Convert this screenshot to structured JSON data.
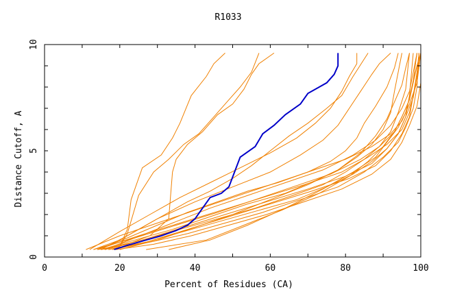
{
  "chart_data": {
    "type": "line",
    "title": "R1033",
    "xlabel": "Percent of Residues (CA)",
    "ylabel": "Distance Cutoff, A",
    "xlim": [
      0,
      100
    ],
    "ylim": [
      0,
      10
    ],
    "x_ticks": [
      "0",
      "20",
      "40",
      "60",
      "80",
      "100"
    ],
    "y_ticks": [
      "0",
      "5",
      "10"
    ],
    "grid": false,
    "colors": {
      "highlight": "#0000c8",
      "others": "#f08000",
      "axis": "#000000"
    },
    "highlight_series": {
      "x": [
        18.5,
        22,
        27,
        31,
        35,
        38,
        40,
        42,
        44,
        47,
        49,
        52,
        56,
        58,
        61,
        64,
        68,
        70,
        75,
        77,
        78,
        78
      ],
      "y": [
        0.35,
        0.55,
        0.8,
        1.0,
        1.25,
        1.5,
        1.8,
        2.3,
        2.8,
        3.0,
        3.3,
        4.7,
        5.2,
        5.8,
        6.2,
        6.7,
        7.2,
        7.7,
        8.2,
        8.6,
        9.0,
        9.6
      ]
    },
    "series": [
      {
        "x": [
          14,
          20,
          22,
          23,
          26,
          31,
          34,
          36,
          39,
          43,
          45,
          48
        ],
        "y": [
          0.35,
          0.5,
          1.3,
          2.7,
          4.2,
          4.8,
          5.6,
          6.3,
          7.6,
          8.5,
          9.1,
          9.6
        ]
      },
      {
        "x": [
          15,
          20,
          22,
          25,
          29,
          33,
          37,
          41,
          45,
          49,
          52,
          55,
          57
        ],
        "y": [
          0.35,
          0.5,
          1.1,
          2.9,
          4.0,
          4.6,
          5.3,
          5.8,
          6.6,
          7.4,
          8.0,
          8.7,
          9.6
        ]
      },
      {
        "x": [
          16,
          22,
          28,
          33,
          34,
          35,
          38,
          42,
          46,
          50,
          53,
          55,
          57,
          61
        ],
        "y": [
          0.35,
          0.6,
          1.0,
          1.8,
          4.0,
          4.6,
          5.3,
          5.9,
          6.7,
          7.2,
          7.9,
          8.6,
          9.1,
          9.6
        ]
      },
      {
        "x": [
          13,
          20,
          26,
          32,
          38,
          44,
          50,
          55,
          60,
          65,
          70,
          75,
          79,
          82,
          86
        ],
        "y": [
          0.35,
          0.8,
          1.4,
          2.0,
          2.6,
          3.1,
          3.7,
          4.3,
          5.0,
          5.7,
          6.3,
          7.0,
          7.6,
          8.5,
          9.6
        ]
      },
      {
        "x": [
          14,
          22,
          30,
          38,
          46,
          54,
          62,
          70,
          76,
          80,
          83,
          85,
          88,
          91,
          93,
          94
        ],
        "y": [
          0.35,
          0.9,
          1.5,
          2.1,
          2.6,
          3.1,
          3.5,
          4.0,
          4.5,
          5.0,
          5.6,
          6.3,
          7.1,
          8.0,
          8.9,
          9.6
        ]
      },
      {
        "x": [
          15,
          24,
          34,
          44,
          54,
          64,
          72,
          78,
          83,
          87,
          90,
          92,
          93,
          95
        ],
        "y": [
          0.35,
          0.8,
          1.3,
          1.9,
          2.5,
          3.0,
          3.6,
          4.1,
          4.7,
          5.3,
          6.0,
          6.8,
          7.8,
          9.6
        ]
      },
      {
        "x": [
          16,
          26,
          36,
          46,
          56,
          66,
          74,
          80,
          85,
          89,
          92,
          94,
          96,
          97
        ],
        "y": [
          0.35,
          0.8,
          1.3,
          1.8,
          2.3,
          2.9,
          3.4,
          4.0,
          4.6,
          5.2,
          5.9,
          6.8,
          7.9,
          9.6
        ]
      },
      {
        "x": [
          17,
          27,
          37,
          47,
          57,
          67,
          75,
          82,
          87,
          91,
          94,
          96,
          97,
          98
        ],
        "y": [
          0.35,
          0.7,
          1.2,
          1.7,
          2.2,
          2.7,
          3.3,
          3.9,
          4.5,
          5.1,
          5.8,
          6.6,
          7.6,
          9.6
        ]
      },
      {
        "x": [
          13,
          24,
          35,
          46,
          56,
          66,
          76,
          84,
          89,
          93,
          95,
          97,
          98,
          99
        ],
        "y": [
          0.35,
          0.9,
          1.5,
          2.1,
          2.7,
          3.3,
          3.9,
          4.6,
          5.2,
          5.9,
          6.6,
          7.4,
          8.3,
          9.6
        ]
      },
      {
        "x": [
          18,
          28,
          38,
          48,
          58,
          68,
          78,
          85,
          90,
          94,
          96,
          98,
          99,
          99.5
        ],
        "y": [
          0.35,
          0.7,
          1.1,
          1.6,
          2.1,
          2.7,
          3.3,
          4.0,
          4.7,
          5.4,
          6.1,
          7.0,
          8.0,
          9.6
        ]
      },
      {
        "x": [
          14,
          25,
          36,
          47,
          58,
          69,
          79,
          86,
          91,
          95,
          97,
          98,
          99,
          100
        ],
        "y": [
          0.35,
          1.0,
          1.6,
          2.2,
          2.8,
          3.4,
          4.0,
          4.7,
          5.3,
          6.0,
          6.8,
          7.6,
          8.5,
          9.6
        ]
      },
      {
        "x": [
          11,
          20,
          30,
          40,
          50,
          60,
          70,
          80,
          87,
          92,
          95,
          97,
          99,
          100
        ],
        "y": [
          0.35,
          1.0,
          1.6,
          2.2,
          2.8,
          3.4,
          4.0,
          4.6,
          5.2,
          5.8,
          6.4,
          7.2,
          8.2,
          9.6
        ]
      },
      {
        "x": [
          19,
          29,
          39,
          49,
          59,
          69,
          79,
          87,
          92,
          95,
          97,
          99,
          100,
          100
        ],
        "y": [
          0.35,
          0.6,
          1.0,
          1.5,
          2.0,
          2.6,
          3.2,
          3.9,
          4.6,
          5.4,
          6.2,
          7.1,
          8.2,
          9.6
        ]
      },
      {
        "x": [
          15,
          26,
          37,
          48,
          59,
          70,
          80,
          87,
          91,
          94,
          96,
          98,
          99,
          100
        ],
        "y": [
          0.35,
          0.8,
          1.4,
          2.0,
          2.6,
          3.2,
          3.8,
          4.4,
          5.1,
          5.8,
          6.6,
          7.5,
          8.5,
          9.6
        ]
      },
      {
        "x": [
          17,
          27,
          38,
          49,
          60,
          71,
          81,
          88,
          92,
          95,
          97,
          98,
          99,
          99.5
        ],
        "y": [
          0.35,
          0.7,
          1.3,
          1.9,
          2.5,
          3.1,
          3.7,
          4.3,
          5.0,
          5.8,
          6.6,
          7.6,
          8.7,
          9.6
        ]
      },
      {
        "x": [
          27,
          43,
          53,
          63,
          73,
          81,
          86,
          90,
          93,
          95,
          97,
          98,
          99,
          100
        ],
        "y": [
          0.35,
          0.8,
          1.5,
          2.2,
          3.0,
          3.8,
          4.5,
          5.2,
          5.9,
          6.6,
          7.4,
          8.2,
          9.0,
          9.6
        ]
      },
      {
        "x": [
          33,
          44,
          54,
          64,
          74,
          82,
          88,
          91,
          94,
          96,
          97,
          98,
          99,
          100
        ],
        "y": [
          0.35,
          0.8,
          1.5,
          2.3,
          3.2,
          4.0,
          4.7,
          5.4,
          6.1,
          6.8,
          7.5,
          8.3,
          9.0,
          9.6
        ]
      },
      {
        "x": [
          16,
          24,
          34,
          44,
          54,
          64,
          74,
          82,
          88,
          92,
          95,
          97,
          98,
          99
        ],
        "y": [
          0.35,
          0.9,
          1.6,
          2.3,
          2.9,
          3.5,
          4.1,
          4.8,
          5.5,
          6.2,
          7.0,
          7.8,
          8.7,
          9.6
        ]
      },
      {
        "x": [
          20,
          30,
          40,
          50,
          60,
          70,
          78,
          84,
          88,
          91,
          93,
          95,
          96,
          97
        ],
        "y": [
          0.35,
          0.8,
          1.4,
          2.0,
          2.7,
          3.4,
          4.1,
          4.9,
          5.7,
          6.5,
          7.3,
          8.1,
          8.9,
          9.6
        ]
      },
      {
        "x": [
          15,
          22,
          30,
          40,
          50,
          60,
          68,
          74,
          78,
          81,
          84,
          87,
          89,
          92
        ],
        "y": [
          0.35,
          1.0,
          1.8,
          2.6,
          3.3,
          4.0,
          4.8,
          5.5,
          6.2,
          7.0,
          7.8,
          8.6,
          9.1,
          9.6
        ]
      },
      {
        "x": [
          12,
          20,
          28,
          36,
          44,
          52,
          60,
          67,
          72,
          76,
          79,
          81,
          83,
          83
        ],
        "y": [
          0.35,
          1.2,
          2.0,
          2.8,
          3.5,
          4.2,
          4.9,
          5.6,
          6.3,
          7.0,
          7.8,
          8.5,
          9.1,
          9.6
        ]
      }
    ]
  }
}
